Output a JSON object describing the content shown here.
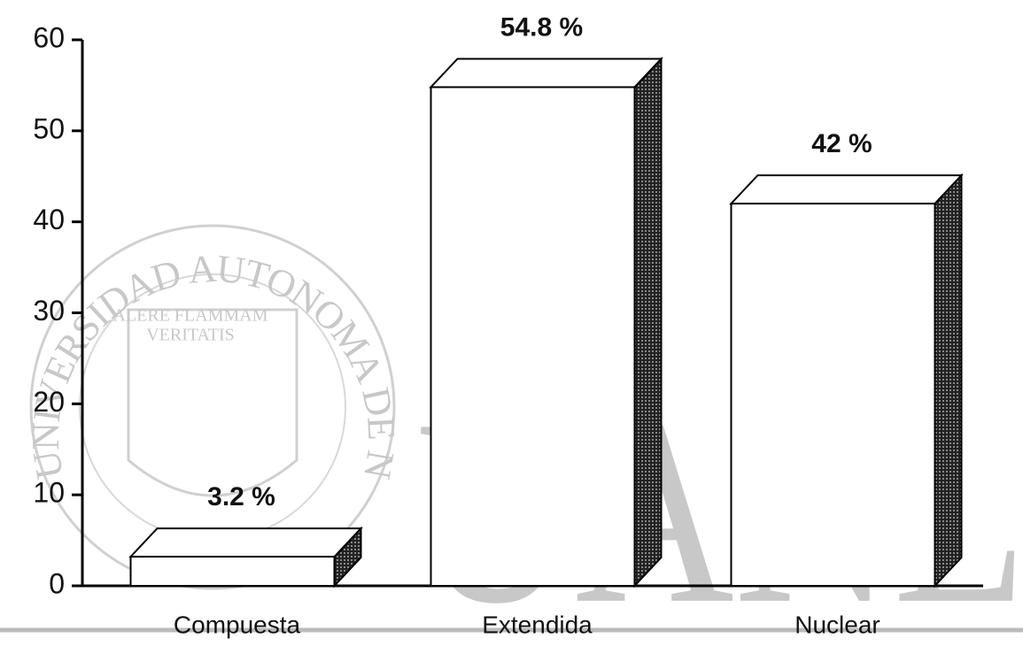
{
  "chart_data": {
    "type": "bar3d",
    "categories": [
      "Compuesta",
      "Extendida",
      "Nuclear"
    ],
    "values": [
      3.2,
      54.8,
      42
    ],
    "value_labels": [
      "3.2 %",
      "54.8 %",
      "42 %"
    ],
    "color": "#ffffff",
    "side_color": "#3a3a3a",
    "ylim": [
      0,
      60
    ],
    "yticks": [
      0,
      10,
      20,
      30,
      40,
      50,
      60
    ],
    "watermark": {
      "text": "UANL",
      "ring": "UNIVERSIDAD AUTONOMA DE NUEVO LEON",
      "motto": [
        "ALERE FLAMMAM",
        "VERITATIS"
      ]
    }
  }
}
